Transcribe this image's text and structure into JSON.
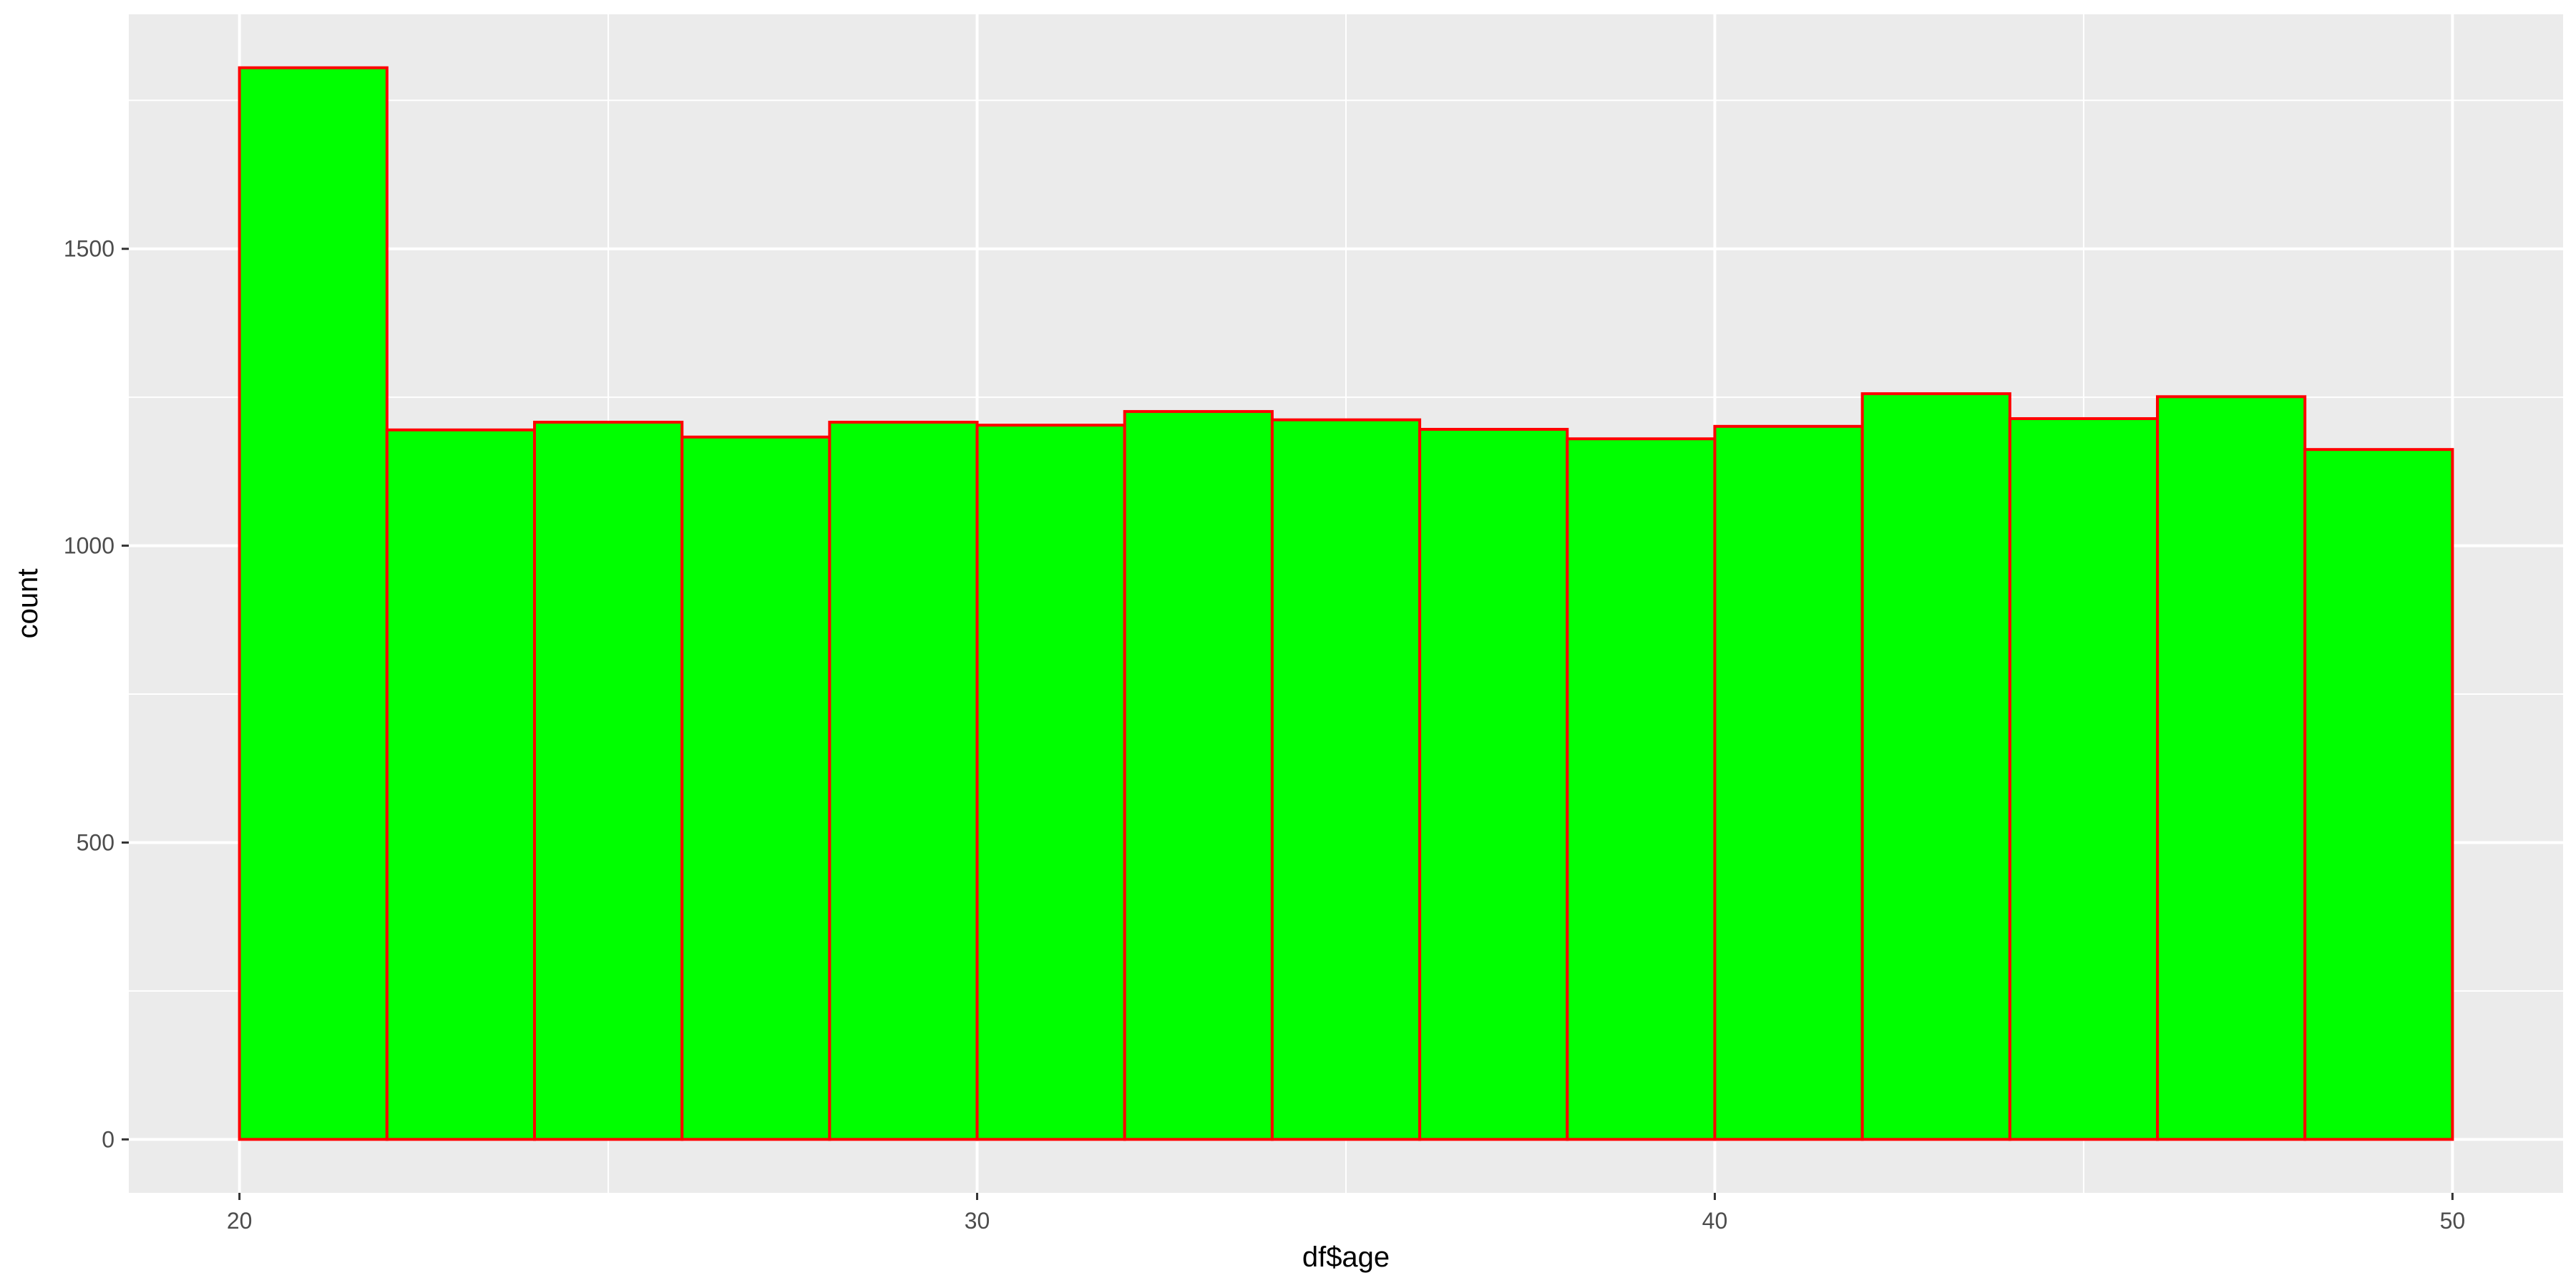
{
  "chart_data": {
    "type": "bar",
    "title": "",
    "xlabel": "df$age",
    "ylabel": "count",
    "bins": [
      {
        "x0": 20,
        "x1": 22,
        "count": 1805
      },
      {
        "x0": 22,
        "x1": 24,
        "count": 1195
      },
      {
        "x0": 24,
        "x1": 26,
        "count": 1208
      },
      {
        "x0": 26,
        "x1": 28,
        "count": 1183
      },
      {
        "x0": 28,
        "x1": 30,
        "count": 1208
      },
      {
        "x0": 30,
        "x1": 32,
        "count": 1203
      },
      {
        "x0": 32,
        "x1": 34,
        "count": 1226
      },
      {
        "x0": 34,
        "x1": 36,
        "count": 1212
      },
      {
        "x0": 36,
        "x1": 38,
        "count": 1196
      },
      {
        "x0": 38,
        "x1": 40,
        "count": 1180
      },
      {
        "x0": 40,
        "x1": 42,
        "count": 1201
      },
      {
        "x0": 42,
        "x1": 44,
        "count": 1256
      },
      {
        "x0": 44,
        "x1": 46,
        "count": 1214
      },
      {
        "x0": 46,
        "x1": 48,
        "count": 1251
      },
      {
        "x0": 48,
        "x1": 50,
        "count": 1162
      }
    ],
    "xlim": [
      18.5,
      51.5
    ],
    "ylim": [
      -90,
      1895
    ],
    "x_ticks": [
      20,
      30,
      40,
      50
    ],
    "y_ticks": [
      0,
      500,
      1000,
      1500
    ],
    "grid": true,
    "colors": {
      "panel_background": "#ebebeb",
      "grid": "#ffffff",
      "bar_fill": "#00ff00",
      "bar_outline": "#ff0000"
    }
  }
}
